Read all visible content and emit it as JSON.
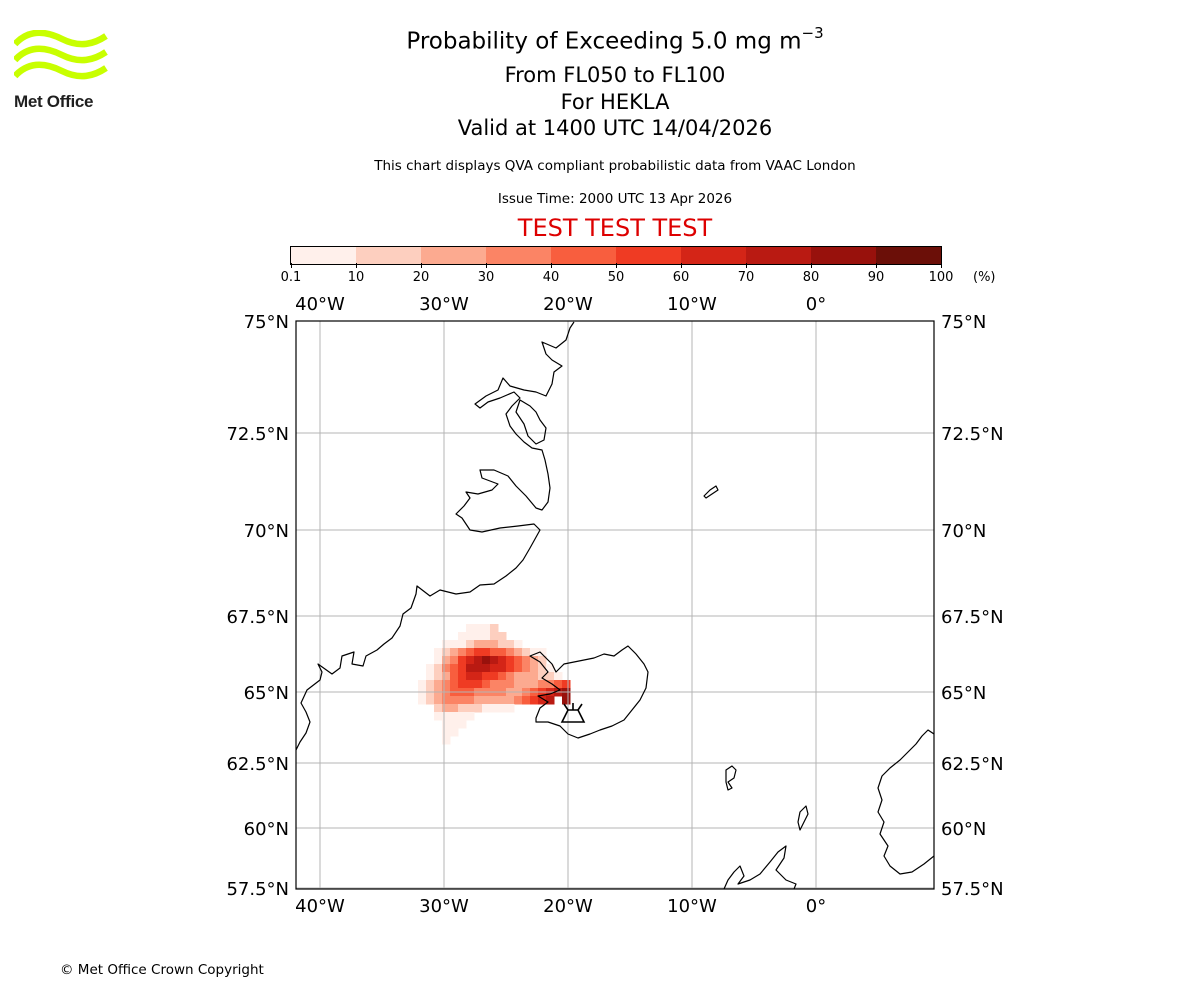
{
  "logo": {
    "text": "Met Office",
    "color": "#c8ff00"
  },
  "title": {
    "line1_main": "Probability of Exceeding 5.0 mg m",
    "line1_exp": "−3",
    "line2": "From FL050 to FL100",
    "line3": "For HEKLA",
    "line4": "Valid at 1400 UTC 14/04/2026"
  },
  "subtitle": "This chart displays QVA compliant probabilistic data from VAAC London",
  "issue_time": "Issue Time: 2000 UTC 13 Apr 2026",
  "test_banner": "TEST TEST TEST",
  "colorbar": {
    "unit": "(%)",
    "ticks": [
      "0.1",
      "10",
      "20",
      "30",
      "40",
      "50",
      "60",
      "70",
      "80",
      "90",
      "100"
    ],
    "colors": [
      "#fff0eb",
      "#fdcfbf",
      "#fcaa90",
      "#fb8465",
      "#f85e3e",
      "#ef3b23",
      "#d42517",
      "#b91a12",
      "#98110c",
      "#6b0f08"
    ]
  },
  "map": {
    "lon_labels": [
      "40°W",
      "30°W",
      "20°W",
      "10°W",
      "0°"
    ],
    "lat_labels": [
      "75°N",
      "72.5°N",
      "70°N",
      "67.5°N",
      "65°N",
      "62.5°N",
      "60°N",
      "57.5°N"
    ],
    "volcano": "HEKLA"
  },
  "copyright": "© Met Office Crown Copyright"
}
